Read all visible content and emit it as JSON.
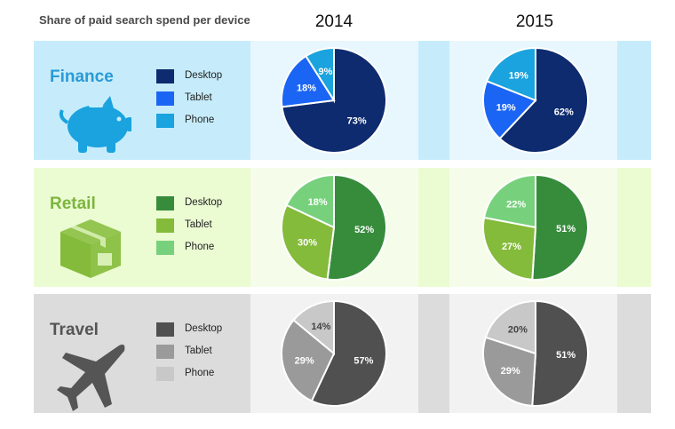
{
  "title": "Share of paid search spend per device",
  "years": [
    "2014",
    "2015"
  ],
  "chart_data": {
    "type": "pie",
    "title": "Share of paid search spend per device",
    "categories": [
      "Desktop",
      "Tablet",
      "Phone"
    ],
    "groups": [
      {
        "name": "Finance",
        "colors": {
          "Desktop": "#0d2b6e",
          "Tablet": "#1b65f5",
          "Phone": "#1aa3de"
        },
        "label_colors": {
          "Desktop": "#ffffff",
          "Tablet": "#ffffff",
          "Phone": "#ffffff"
        },
        "theme": {
          "band": "#c6ecfb",
          "panel": "#e8f7fd",
          "text": "#2a9ad6"
        },
        "pies": [
          {
            "year": "2014",
            "values": {
              "Desktop": 73,
              "Tablet": 18,
              "Phone": 9
            }
          },
          {
            "year": "2015",
            "values": {
              "Desktop": 62,
              "Tablet": 19,
              "Phone": 19
            }
          }
        ]
      },
      {
        "name": "Retail",
        "colors": {
          "Desktop": "#378c3c",
          "Tablet": "#84bb3a",
          "Phone": "#77d17c"
        },
        "label_colors": {
          "Desktop": "#ffffff",
          "Tablet": "#ffffff",
          "Phone": "#ffffff"
        },
        "theme": {
          "band": "#ebfbd2",
          "panel": "#f5fdea",
          "text": "#7cb53e"
        },
        "pies": [
          {
            "year": "2014",
            "values": {
              "Desktop": 52,
              "Tablet": 30,
              "Phone": 18
            }
          },
          {
            "year": "2015",
            "values": {
              "Desktop": 51,
              "Tablet": 27,
              "Phone": 22
            }
          }
        ]
      },
      {
        "name": "Travel",
        "colors": {
          "Desktop": "#505050",
          "Tablet": "#9a9a9a",
          "Phone": "#c8c8c8"
        },
        "label_colors": {
          "Desktop": "#ffffff",
          "Tablet": "#ffffff",
          "Phone": "#444444"
        },
        "theme": {
          "band": "#dcdcdc",
          "panel": "#f2f2f2",
          "text": "#555555"
        },
        "pies": [
          {
            "year": "2014",
            "values": {
              "Desktop": 57,
              "Tablet": 29,
              "Phone": 14
            }
          },
          {
            "year": "2015",
            "values": {
              "Desktop": 51,
              "Tablet": 29,
              "Phone": 20
            }
          }
        ]
      }
    ],
    "icons": [
      "piggy-bank-icon",
      "box-icon",
      "airplane-icon"
    ]
  }
}
